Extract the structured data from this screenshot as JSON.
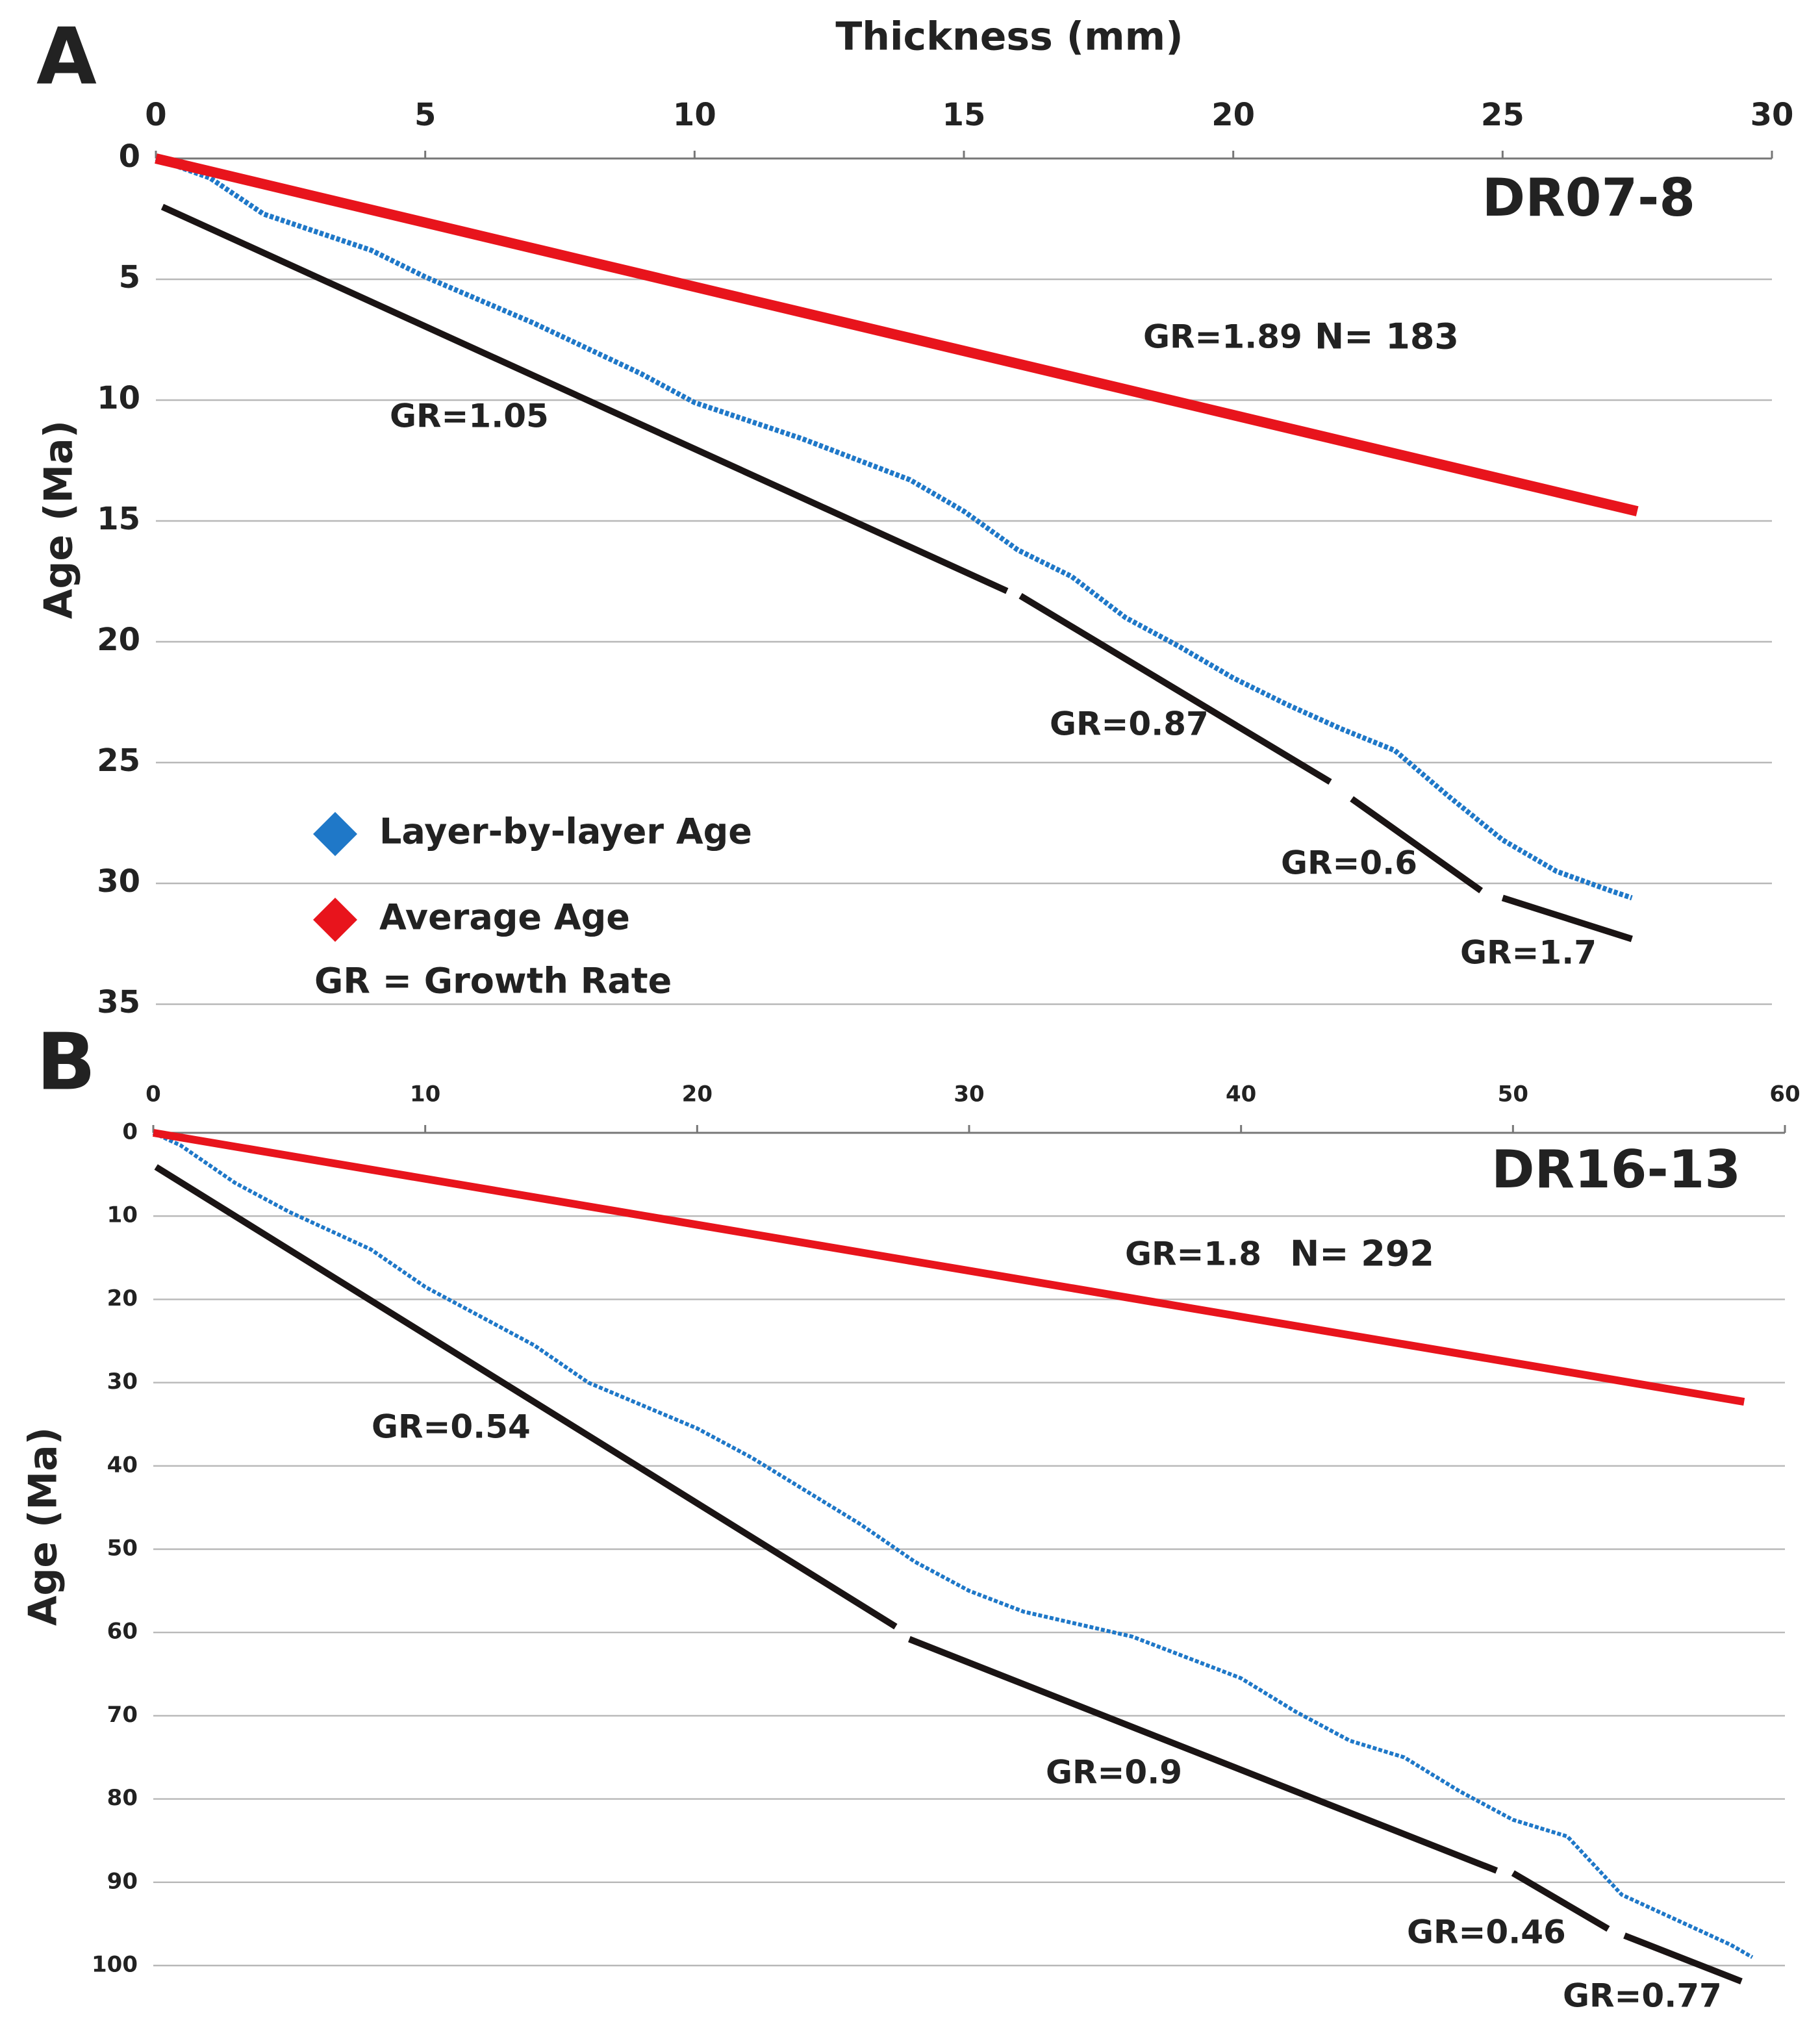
{
  "chart_data": [
    {
      "type": "line",
      "panel": "A",
      "sample": "DR07-8",
      "x_label": "Thickness (mm)",
      "y_label": "Age (Ma)",
      "xlim": [
        0,
        30
      ],
      "xticks": [
        0,
        5,
        10,
        15,
        20,
        25,
        30
      ],
      "ylim": [
        0,
        35
      ],
      "yticks": [
        0,
        5,
        10,
        15,
        20,
        25,
        30,
        35
      ],
      "y_inverted": true,
      "grid": true,
      "legend": "lower-left",
      "series": [
        {
          "name": "Layer-by-layer Age",
          "color": "#1f78c8",
          "x": [
            0,
            1,
            2,
            4,
            5,
            7,
            9,
            10,
            12,
            14,
            15,
            16,
            17,
            18,
            19,
            20,
            21,
            22,
            23,
            24,
            25,
            26,
            27,
            27.4
          ],
          "values": [
            0,
            0.8,
            2.3,
            3.8,
            4.9,
            6.8,
            8.9,
            10.1,
            11.6,
            13.3,
            14.6,
            16.2,
            17.3,
            19,
            20.2,
            21.5,
            22.6,
            23.6,
            24.5,
            26.4,
            28.2,
            29.5,
            30.3,
            30.6
          ]
        },
        {
          "name": "Average Age",
          "color": "#e8141c",
          "x": [
            0,
            27.5
          ],
          "values": [
            0,
            14.6
          ]
        }
      ],
      "fit_lines": [
        {
          "color": "#1a1414",
          "x": [
            0.12,
            15.8
          ],
          "values": [
            2.0,
            17.9
          ]
        },
        {
          "color": "#1a1414",
          "x": [
            16.05,
            21.8
          ],
          "values": [
            18.1,
            25.8
          ]
        },
        {
          "color": "#1a1414",
          "x": [
            22.2,
            24.6
          ],
          "values": [
            26.5,
            30.3
          ]
        },
        {
          "color": "#1a1414",
          "x": [
            25,
            27.4
          ],
          "values": [
            30.6,
            32.3
          ]
        }
      ],
      "note": "GR = Growth Rate",
      "annotations": [
        "GR=1.89",
        "N= 183",
        "GR=1.05",
        "GR=0.87",
        "GR=0.6",
        "GR=1.7"
      ]
    },
    {
      "type": "line",
      "panel": "B",
      "sample": "DR16-13",
      "y_label": "Age (Ma)",
      "xlim": [
        0,
        60
      ],
      "xticks": [
        0,
        10,
        20,
        30,
        40,
        50,
        60
      ],
      "ylim": [
        0,
        100
      ],
      "yticks": [
        0,
        10,
        20,
        30,
        40,
        50,
        60,
        70,
        80,
        90,
        100
      ],
      "y_inverted": true,
      "grid": true,
      "series": [
        {
          "color": "#1f78c8",
          "x": [
            0,
            1,
            3,
            5,
            8,
            10,
            12,
            14,
            16,
            20,
            22,
            24,
            26,
            28,
            30,
            32,
            36,
            40,
            42,
            44,
            46,
            48,
            50,
            52,
            53,
            54,
            56,
            58,
            58.8
          ],
          "values": [
            0,
            1.5,
            6,
            9.5,
            14,
            18.5,
            22,
            25.5,
            30,
            35.5,
            39,
            43,
            47,
            51.5,
            55,
            57.5,
            60.5,
            65.5,
            69.5,
            73,
            75,
            79,
            82.5,
            84.5,
            88,
            91.5,
            94.5,
            97.5,
            99
          ]
        },
        {
          "color": "#e8141c",
          "x": [
            0,
            58.5
          ],
          "values": [
            0,
            32.3
          ]
        }
      ],
      "fit_lines": [
        {
          "color": "#1a1414",
          "x": [
            0.1,
            27.3
          ],
          "values": [
            4.1,
            59.3
          ]
        },
        {
          "color": "#1a1414",
          "x": [
            27.8,
            49.4
          ],
          "values": [
            60.8,
            88.6
          ]
        },
        {
          "color": "#1a1414",
          "x": [
            50,
            53.5
          ],
          "values": [
            88.9,
            95.6
          ]
        },
        {
          "color": "#1a1414",
          "x": [
            54.1,
            58.4
          ],
          "values": [
            96.4,
            101.9
          ]
        }
      ],
      "annotations": [
        "GR=1.8",
        "N= 292",
        "GR=0.54",
        "GR=0.9",
        "GR=0.46",
        "GR=0.77"
      ]
    }
  ]
}
